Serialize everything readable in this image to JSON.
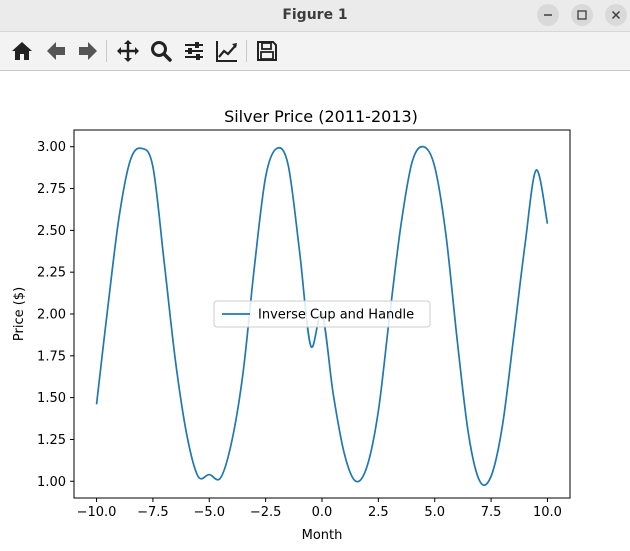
{
  "window": {
    "title": "Figure 1"
  },
  "toolbar": {
    "buttons": [
      {
        "name": "home-icon"
      },
      {
        "name": "back-arrow-icon"
      },
      {
        "name": "forward-arrow-icon"
      },
      {
        "name": "pan-icon"
      },
      {
        "name": "zoom-icon"
      },
      {
        "name": "configure-subplots-icon"
      },
      {
        "name": "edit-axes-icon"
      },
      {
        "name": "save-icon"
      }
    ]
  },
  "chart_data": {
    "type": "line",
    "title": "Silver Price (2011-2013)",
    "xlabel": "Month",
    "ylabel": "Price ($)",
    "xlim": [
      -11,
      11
    ],
    "ylim": [
      0.9,
      3.1
    ],
    "xticks": [
      -10.0,
      -7.5,
      -5.0,
      -2.5,
      0.0,
      2.5,
      5.0,
      7.5,
      10.0
    ],
    "xtick_labels": [
      "−10.0",
      "−7.5",
      "−5.0",
      "−2.5",
      "0.0",
      "2.5",
      "5.0",
      "7.5",
      "10.0"
    ],
    "yticks": [
      1.0,
      1.25,
      1.5,
      1.75,
      2.0,
      2.25,
      2.5,
      2.75,
      3.0
    ],
    "ytick_labels": [
      "1.00",
      "1.25",
      "1.50",
      "1.75",
      "2.00",
      "2.25",
      "2.50",
      "2.75",
      "3.00"
    ],
    "legend": {
      "position": "center"
    },
    "series": [
      {
        "name": "Inverse Cup and Handle",
        "color": "#1f77b4",
        "x": [
          -10,
          -9.5,
          -9,
          -8.5,
          -8,
          -7.5,
          -7,
          -6.5,
          -6,
          -5.5,
          -5,
          -4.5,
          -4,
          -3.5,
          -3,
          -2.5,
          -2,
          -1.5,
          -1,
          -0.5,
          0,
          0.5,
          1,
          1.5,
          2,
          2.5,
          3,
          3.5,
          4,
          4.5,
          5,
          5.5,
          6,
          6.5,
          7,
          7.5,
          8,
          8.5,
          9,
          9.5,
          10
        ],
        "y": [
          1.46,
          2.04,
          2.58,
          2.92,
          2.99,
          2.88,
          2.31,
          1.72,
          1.28,
          1.03,
          1.04,
          1.02,
          1.24,
          1.65,
          2.28,
          2.82,
          2.99,
          2.89,
          2.38,
          1.81,
          2.0,
          1.52,
          1.16,
          1.0,
          1.09,
          1.42,
          1.99,
          2.53,
          2.91,
          3.0,
          2.88,
          2.47,
          1.84,
          1.28,
          1.0,
          1.03,
          1.33,
          1.86,
          2.41,
          2.86,
          2.54
        ]
      }
    ]
  }
}
